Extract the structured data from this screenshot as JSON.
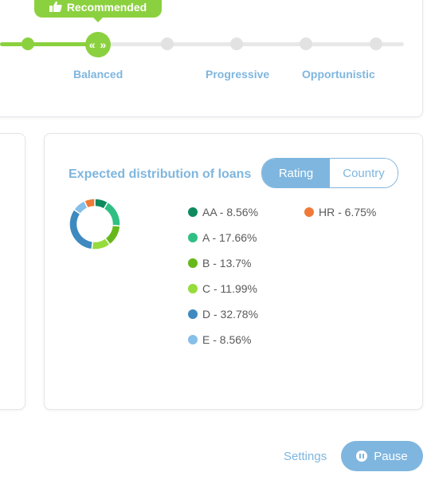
{
  "strategy": {
    "badge_label": "Recommended",
    "steps": [
      {
        "label": ""
      },
      {
        "label": "Balanced"
      },
      {
        "label": ""
      },
      {
        "label": "Progressive"
      },
      {
        "label": "Opportunistic"
      },
      {
        "label": ""
      }
    ],
    "selected_step": "Balanced",
    "knob_glyph": "« »"
  },
  "distribution": {
    "title": "Expected distribution of loans",
    "toggle": {
      "options": [
        "Rating",
        "Country"
      ],
      "active": "Rating"
    },
    "legend": [
      {
        "label": "AA - 8.56%",
        "color": "#0f8a5f"
      },
      {
        "label": "A - 17.66%",
        "color": "#2fbf83"
      },
      {
        "label": "B - 13.7%",
        "color": "#66b81a"
      },
      {
        "label": "C - 11.99%",
        "color": "#95dc3c"
      },
      {
        "label": "D - 32.78%",
        "color": "#3e8ac0"
      },
      {
        "label": "E - 8.56%",
        "color": "#86bfe8"
      },
      {
        "label": "HR - 6.75%",
        "color": "#ef7a37"
      }
    ]
  },
  "chart_data": {
    "type": "pie",
    "categories": [
      "AA",
      "A",
      "B",
      "C",
      "D",
      "E",
      "HR"
    ],
    "values": [
      8.56,
      17.66,
      13.7,
      11.99,
      32.78,
      8.56,
      6.75
    ],
    "colors": [
      "#0f8a5f",
      "#2fbf83",
      "#66b81a",
      "#95dc3c",
      "#3e8ac0",
      "#86bfe8",
      "#ef7a37"
    ]
  },
  "controls": {
    "settings_label": "Settings",
    "pause_label": "Pause"
  },
  "colors": {
    "accent_green": "#8bd13f",
    "accent_blue": "#7fb6df"
  }
}
